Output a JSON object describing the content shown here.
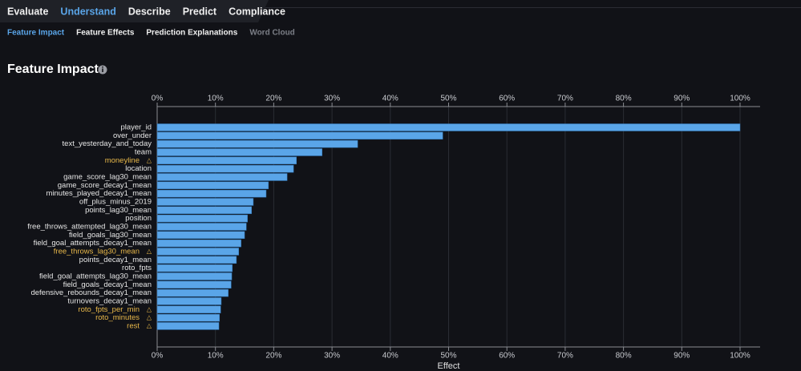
{
  "nav": {
    "tabs": [
      "Evaluate",
      "Understand",
      "Describe",
      "Predict",
      "Compliance"
    ],
    "active": 1
  },
  "subnav": {
    "tabs": [
      "Feature Impact",
      "Feature Effects",
      "Prediction Explanations",
      "Word Cloud"
    ],
    "active": 0,
    "disabled": [
      3
    ]
  },
  "heading": "Feature Impact",
  "chart_data": {
    "type": "bar",
    "orientation": "horizontal",
    "x_label": "Effect",
    "color": "#5aa5e8",
    "warning_color": "#e8b84a",
    "warning_marker": "△",
    "categories": [
      "player_id",
      "over_under",
      "text_yesterday_and_today",
      "team",
      "moneyline",
      "location",
      "game_score_lag30_mean",
      "game_score_decay1_mean",
      "minutes_played_decay1_mean",
      "off_plus_minus_2019",
      "points_lag30_mean",
      "position",
      "free_throws_attempted_lag30_mean",
      "field_goals_lag30_mean",
      "field_goal_attempts_decay1_mean",
      "free_throws_lag30_mean",
      "points_decay1_mean",
      "roto_fpts",
      "field_goal_attempts_lag30_mean",
      "field_goals_decay1_mean",
      "defensive_rebounds_decay1_mean",
      "turnovers_decay1_mean",
      "roto_fpts_per_min",
      "roto_minutes",
      "rest"
    ],
    "values": [
      100,
      49.0,
      34.4,
      28.3,
      23.9,
      23.4,
      22.3,
      19.1,
      18.7,
      16.5,
      16.2,
      15.5,
      15.3,
      15.0,
      14.4,
      14.0,
      13.6,
      12.9,
      12.8,
      12.7,
      12.2,
      11.0,
      10.9,
      10.7,
      10.6
    ],
    "flagged": [
      false,
      false,
      false,
      false,
      true,
      false,
      false,
      false,
      false,
      false,
      false,
      false,
      false,
      false,
      false,
      true,
      false,
      false,
      false,
      false,
      false,
      false,
      true,
      true,
      true
    ],
    "xlim": [
      0,
      100
    ],
    "xticks": [
      {
        "value": 0,
        "label": "0%"
      },
      {
        "value": 10,
        "label": "10%"
      },
      {
        "value": 20,
        "label": "20%"
      },
      {
        "value": 30,
        "label": "30%"
      },
      {
        "value": 40,
        "label": "40%"
      },
      {
        "value": 50,
        "label": "50%"
      },
      {
        "value": 60,
        "label": "60%"
      },
      {
        "value": 70,
        "label": "70%"
      },
      {
        "value": 80,
        "label": "80%"
      },
      {
        "value": 90,
        "label": "90%"
      },
      {
        "value": 100,
        "label": "100%"
      }
    ],
    "grid": true
  }
}
